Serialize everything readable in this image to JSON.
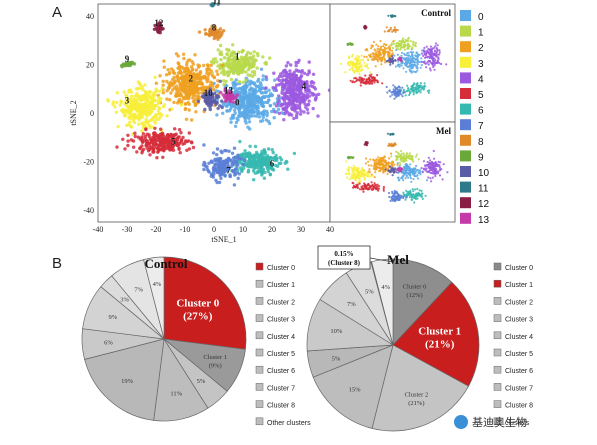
{
  "panel_a_label": "A",
  "panel_b_label": "B",
  "palette": [
    "#5aa9e6",
    "#b9d94b",
    "#f0a020",
    "#f7ef3a",
    "#9b59e0",
    "#d62d3a",
    "#35b8b0",
    "#5b7fd6",
    "#e08a2a",
    "#6aa83a",
    "#5a5ca8",
    "#2f7a8a",
    "#8a1f45",
    "#c43aa8"
  ],
  "watermark": "基迪奥生物",
  "chart_data": [
    {
      "type": "scatter",
      "subtype": "tsne",
      "xlabel": "tSNE_1",
      "ylabel": "tSNE_2",
      "xlim": [
        -40,
        40
      ],
      "ylim": [
        -45,
        45
      ],
      "xticks": [
        -40,
        -30,
        -20,
        -10,
        0,
        10,
        20,
        30,
        40
      ],
      "yticks": [
        40,
        20,
        0,
        -20,
        -40
      ],
      "legend_title": "",
      "legend_position": "right",
      "clusters": [
        {
          "name": "0",
          "center": [
            12,
            5
          ],
          "spread": [
            8,
            8
          ],
          "label_pos": [
            8,
            3
          ]
        },
        {
          "name": "1",
          "center": [
            8,
            20
          ],
          "spread": [
            7,
            5
          ],
          "label_pos": [
            8,
            22
          ]
        },
        {
          "name": "2",
          "center": [
            -8,
            12
          ],
          "spread": [
            8,
            8
          ],
          "label_pos": [
            -8,
            13
          ]
        },
        {
          "name": "3",
          "center": [
            -25,
            2
          ],
          "spread": [
            7,
            7
          ],
          "label_pos": [
            -30,
            4
          ]
        },
        {
          "name": "4",
          "center": [
            28,
            9
          ],
          "spread": [
            6,
            9
          ],
          "label_pos": [
            31,
            10
          ]
        },
        {
          "name": "5",
          "center": [
            -18,
            -12
          ],
          "spread": [
            9,
            4
          ],
          "label_pos": [
            -14,
            -13
          ]
        },
        {
          "name": "6",
          "center": [
            15,
            -20
          ],
          "spread": [
            7,
            5
          ],
          "label_pos": [
            20,
            -22
          ]
        },
        {
          "name": "7",
          "center": [
            3,
            -22
          ],
          "spread": [
            5,
            5
          ],
          "label_pos": [
            5,
            -25
          ]
        },
        {
          "name": "8",
          "center": [
            0,
            33
          ],
          "spread": [
            3,
            2
          ],
          "label_pos": [
            0,
            34
          ]
        },
        {
          "name": "9",
          "center": [
            -30,
            20
          ],
          "spread": [
            2,
            1
          ],
          "label_pos": [
            -30,
            21
          ]
        },
        {
          "name": "10",
          "center": [
            -1,
            6
          ],
          "spread": [
            3,
            3
          ],
          "label_pos": [
            -2,
            7
          ]
        },
        {
          "name": "11",
          "center": [
            0,
            45
          ],
          "spread": [
            2,
            0.7
          ],
          "label_pos": [
            1,
            45
          ]
        },
        {
          "name": "12",
          "center": [
            -19,
            35
          ],
          "spread": [
            1,
            2
          ],
          "label_pos": [
            -19,
            36
          ]
        },
        {
          "name": "13",
          "center": [
            5,
            7
          ],
          "spread": [
            2,
            2
          ],
          "label_pos": [
            5,
            8
          ]
        }
      ],
      "facets": [
        "Control",
        "Mel"
      ]
    },
    {
      "type": "pie",
      "title": "Control",
      "slices": [
        {
          "label": "Cluster 0",
          "percent": 27,
          "text": "Cluster 0\n(27%)",
          "highlight": true
        },
        {
          "label": "Cluster 1",
          "percent": 9,
          "text": "Cluster 1\n(9%)"
        },
        {
          "label": "Cluster 2",
          "percent": 5,
          "text": "5%"
        },
        {
          "label": "Cluster 3",
          "percent": 11,
          "text": "11%"
        },
        {
          "label": "Cluster 4",
          "percent": 19,
          "text": "19%"
        },
        {
          "label": "Cluster 5",
          "percent": 6,
          "text": "6%"
        },
        {
          "label": "Cluster 6",
          "percent": 9,
          "text": "9%"
        },
        {
          "label": "Cluster 7",
          "percent": 3,
          "text": "3%"
        },
        {
          "label": "Cluster 8",
          "percent": 7,
          "text": "7%"
        },
        {
          "label": "Other clusters",
          "percent": 4,
          "text": "4%"
        }
      ],
      "legend": [
        "Cluster 0",
        "Cluster 1",
        "Cluster 2",
        "Cluster 3",
        "Cluster 4",
        "Cluster 5",
        "Cluster 6",
        "Cluster 7",
        "Cluster 8",
        "Other clusters"
      ],
      "highlight_legend": "Cluster 0"
    },
    {
      "type": "pie",
      "title": "Mel",
      "slices": [
        {
          "label": "Cluster 0",
          "percent": 12,
          "text": "Cluster 0\n(12%)"
        },
        {
          "label": "Cluster 1",
          "percent": 21,
          "text": "Cluster 1\n(21%)",
          "highlight": true
        },
        {
          "label": "Cluster 2",
          "percent": 21,
          "text": "Cluster 2\n(21%)"
        },
        {
          "label": "Cluster 3",
          "percent": 15,
          "text": "15%"
        },
        {
          "label": "Cluster 4",
          "percent": 5,
          "text": "5%"
        },
        {
          "label": "Cluster 5",
          "percent": 10,
          "text": "10%"
        },
        {
          "label": "Cluster 6",
          "percent": 7,
          "text": "7%"
        },
        {
          "label": "Cluster 7",
          "percent": 5,
          "text": "5%"
        },
        {
          "label": "Cluster 8",
          "percent": 0.15,
          "text": ""
        },
        {
          "label": "Other clusters",
          "percent": 4,
          "text": "4%"
        }
      ],
      "callout": "0.15%\n(Cluster 8)",
      "legend": [
        "Cluster 0",
        "Cluster 1",
        "Cluster 2",
        "Cluster 3",
        "Cluster 4",
        "Cluster 5",
        "Cluster 6",
        "Cluster 7",
        "Cluster 8",
        "clusters"
      ],
      "highlight_legend": "Cluster 1"
    }
  ]
}
